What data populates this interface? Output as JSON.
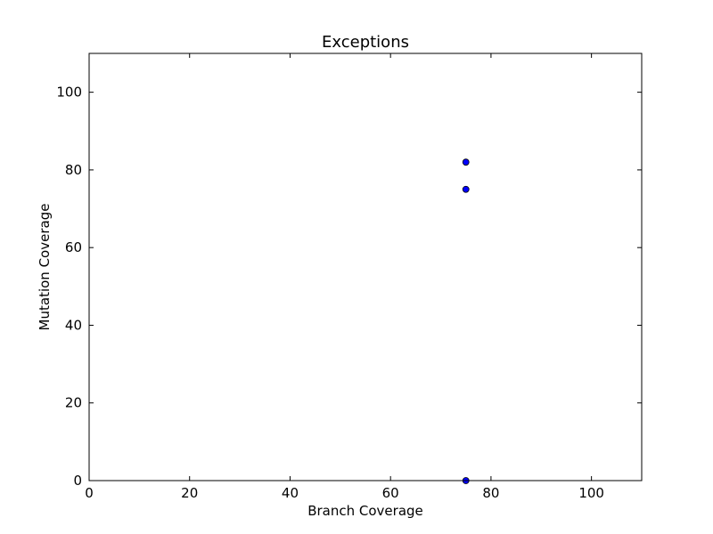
{
  "chart_data": {
    "type": "scatter",
    "title": "Exceptions",
    "xlabel": "Branch Coverage",
    "ylabel": "Mutation Coverage",
    "xlim": [
      0,
      110
    ],
    "ylim": [
      0,
      110
    ],
    "xticks": [
      0,
      20,
      40,
      60,
      80,
      100
    ],
    "yticks": [
      0,
      20,
      40,
      60,
      80,
      100
    ],
    "grid": false,
    "series": [
      {
        "points": [
          {
            "x": 75,
            "y": 82
          },
          {
            "x": 75,
            "y": 75
          },
          {
            "x": 75,
            "y": 0
          }
        ],
        "color": "#0000ff",
        "edge_color": "#000000"
      }
    ]
  }
}
